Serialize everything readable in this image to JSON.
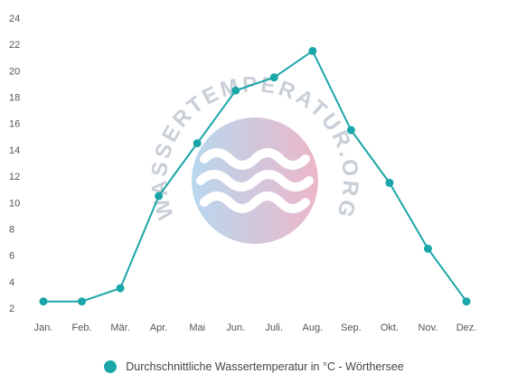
{
  "chart_data": {
    "type": "line",
    "categories": [
      "Jan.",
      "Feb.",
      "Mär.",
      "Apr.",
      "Mai",
      "Jun.",
      "Juli.",
      "Aug.",
      "Sep.",
      "Okt.",
      "Nov.",
      "Dez."
    ],
    "series": [
      {
        "name": "Durchschnittliche Wassertemperatur in °C - Wörthersee",
        "values": [
          2.5,
          2.5,
          3.5,
          10.5,
          14.5,
          18.5,
          19.5,
          21.5,
          15.5,
          11.5,
          6.5,
          2.5
        ]
      }
    ],
    "yticks": [
      2,
      4,
      6,
      8,
      10,
      12,
      14,
      16,
      18,
      20,
      22,
      24
    ],
    "ylim": [
      2,
      24
    ],
    "grid": false,
    "legend_position": "bottom"
  },
  "watermark": {
    "text": "WASSERTEMPERATUR.ORG",
    "icon": "waves-logo-icon"
  },
  "colors": {
    "series": "#1aa6a8",
    "axis_text": "#555555",
    "watermark_text": "#c9cfd6",
    "logo_blue": "#b8d8ee",
    "logo_pink": "#ecb6c9"
  }
}
